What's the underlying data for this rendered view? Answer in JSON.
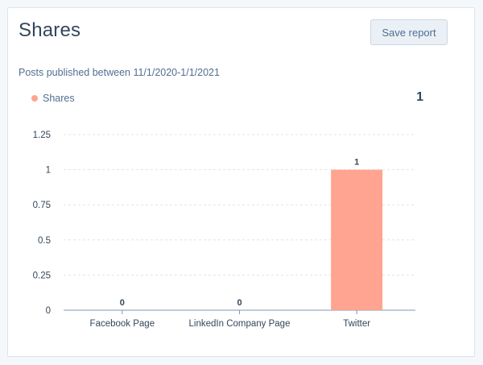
{
  "card": {
    "title": "Shares",
    "save_label": "Save report",
    "subtitle": "Posts published between 11/1/2020-1/1/2021",
    "total": "1"
  },
  "colors": {
    "series": "#ffa490",
    "axis": "#7c98b6",
    "grid": "#dfe3eb",
    "text": "#33475b",
    "muted": "#516f90"
  },
  "chart_data": {
    "type": "bar",
    "title": "Shares",
    "categories": [
      "Facebook Page",
      "LinkedIn Company Page",
      "Twitter"
    ],
    "series": [
      {
        "name": "Shares",
        "values": [
          0,
          0,
          1
        ]
      }
    ],
    "yticks": [
      0,
      0.25,
      0.5,
      0.75,
      1,
      1.25
    ],
    "ytick_labels": [
      "0",
      "0.25",
      "0.5",
      "0.75",
      "1",
      "1.25"
    ],
    "ylim": [
      0,
      1.25
    ],
    "xlabel": "",
    "ylabel": "",
    "grid": true,
    "legend": "top-left",
    "data_labels": [
      "0",
      "0",
      "1"
    ]
  }
}
